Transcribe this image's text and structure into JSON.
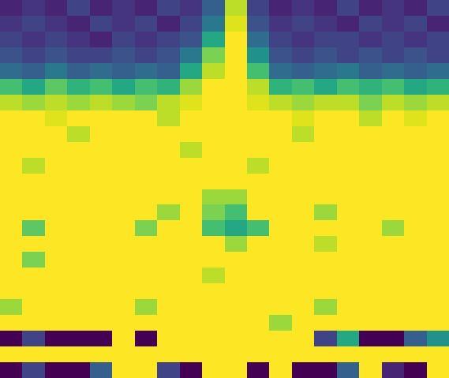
{
  "chart_data": {
    "type": "heatmap",
    "color": "Viridis",
    "tick_labels": false,
    "x": [
      0,
      1,
      2,
      3,
      4,
      5,
      6,
      7,
      8,
      9,
      10,
      11,
      12,
      13,
      14,
      15,
      16,
      17,
      18,
      19
    ],
    "y": [
      0,
      1,
      2,
      3,
      4,
      5,
      6,
      7,
      8,
      9,
      10,
      11,
      12,
      13,
      14,
      15,
      16,
      17,
      18,
      19,
      20,
      21,
      22,
      23
    ],
    "xlim": [
      -0.5,
      19.5
    ],
    "ylim": [
      23.5,
      -0.5
    ],
    "zlim": [
      0,
      1
    ],
    "z": [
      [
        0.1,
        0.15,
        0.1,
        0.2,
        0.1,
        0.15,
        0.1,
        0.2,
        0.15,
        0.3,
        0.9,
        0.2,
        0.1,
        0.15,
        0.1,
        0.2,
        0.1,
        0.15,
        0.1,
        0.2
      ],
      [
        0.15,
        0.2,
        0.15,
        0.1,
        0.2,
        0.15,
        0.2,
        0.1,
        0.2,
        0.4,
        0.95,
        0.25,
        0.15,
        0.2,
        0.15,
        0.1,
        0.2,
        0.15,
        0.2,
        0.1
      ],
      [
        0.2,
        0.15,
        0.2,
        0.15,
        0.1,
        0.2,
        0.15,
        0.2,
        0.25,
        0.6,
        1,
        0.35,
        0.2,
        0.15,
        0.2,
        0.2,
        0.15,
        0.2,
        0.15,
        0.2
      ],
      [
        0.25,
        0.2,
        0.25,
        0.2,
        0.2,
        0.25,
        0.2,
        0.25,
        0.4,
        0.8,
        1,
        0.5,
        0.25,
        0.2,
        0.25,
        0.2,
        0.25,
        0.2,
        0.25,
        0.2
      ],
      [
        0.35,
        0.3,
        0.4,
        0.3,
        0.35,
        0.3,
        0.35,
        0.3,
        0.6,
        0.9,
        1,
        0.7,
        0.35,
        0.3,
        0.35,
        0.4,
        0.3,
        0.35,
        0.3,
        0.35
      ],
      [
        0.7,
        0.6,
        0.75,
        0.65,
        0.7,
        0.6,
        0.7,
        0.65,
        0.85,
        1,
        1,
        0.9,
        0.65,
        0.7,
        0.6,
        0.7,
        0.65,
        0.7,
        0.6,
        0.65
      ],
      [
        0.9,
        0.85,
        0.9,
        0.85,
        0.9,
        0.85,
        0.8,
        0.9,
        0.95,
        1,
        1,
        0.95,
        0.9,
        0.85,
        0.9,
        0.9,
        0.8,
        0.9,
        0.85,
        0.9
      ],
      [
        1,
        1,
        0.95,
        1,
        1,
        1,
        1,
        0.9,
        1,
        1,
        1,
        1,
        1,
        0.95,
        1,
        1,
        0.9,
        1,
        0.95,
        1
      ],
      [
        1,
        1,
        1,
        0.9,
        1,
        1,
        1,
        1,
        1,
        1,
        1,
        1,
        1,
        0.9,
        1,
        1,
        1,
        1,
        1,
        1
      ],
      [
        1,
        1,
        1,
        1,
        1,
        1,
        1,
        1,
        0.9,
        1,
        1,
        1,
        1,
        1,
        1,
        1,
        1,
        1,
        1,
        1
      ],
      [
        1,
        0.9,
        1,
        1,
        1,
        1,
        1,
        1,
        1,
        1,
        1,
        0.9,
        1,
        1,
        1,
        1,
        1,
        1,
        1,
        1
      ],
      [
        1,
        1,
        1,
        1,
        1,
        1,
        1,
        1,
        1,
        1,
        1,
        1,
        1,
        1,
        1,
        1,
        1,
        1,
        1,
        1
      ],
      [
        1,
        1,
        1,
        1,
        1,
        1,
        1,
        1,
        1,
        0.85,
        0.85,
        1,
        1,
        1,
        1,
        1,
        1,
        1,
        1,
        1
      ],
      [
        1,
        1,
        1,
        1,
        1,
        1,
        1,
        0.85,
        1,
        0.8,
        0.7,
        1,
        1,
        1,
        0.85,
        1,
        1,
        1,
        1,
        1
      ],
      [
        1,
        0.75,
        1,
        1,
        1,
        1,
        0.8,
        1,
        1,
        0.7,
        0.6,
        0.7,
        1,
        1,
        1,
        1,
        1,
        0.85,
        1,
        1
      ],
      [
        1,
        1,
        1,
        1,
        1,
        1,
        1,
        1,
        1,
        1,
        0.85,
        1,
        1,
        1,
        0.9,
        1,
        1,
        1,
        1,
        1
      ],
      [
        1,
        0.8,
        1,
        1,
        1,
        1,
        1,
        1,
        1,
        1,
        1,
        1,
        1,
        1,
        1,
        1,
        1,
        1,
        1,
        1
      ],
      [
        1,
        1,
        1,
        1,
        1,
        1,
        1,
        1,
        1,
        0.9,
        1,
        1,
        1,
        1,
        1,
        1,
        1,
        1,
        1,
        1
      ],
      [
        1,
        1,
        1,
        1,
        1,
        1,
        1,
        1,
        1,
        1,
        1,
        1,
        1,
        1,
        1,
        1,
        1,
        1,
        1,
        1
      ],
      [
        0.85,
        1,
        1,
        1,
        1,
        1,
        0.85,
        1,
        1,
        1,
        1,
        1,
        1,
        1,
        0.85,
        1,
        1,
        1,
        1,
        1
      ],
      [
        1,
        1,
        1,
        1,
        1,
        1,
        1,
        1,
        1,
        1,
        1,
        1,
        0.85,
        1,
        1,
        1,
        1,
        1,
        1,
        1
      ],
      [
        0,
        0.2,
        0,
        0,
        0,
        1,
        0,
        1,
        1,
        1,
        1,
        1,
        1,
        1,
        0.2,
        0.6,
        0,
        0,
        0.3,
        0.5
      ],
      [
        1,
        1,
        1,
        1,
        1,
        1,
        1,
        1,
        1,
        1,
        1,
        1,
        1,
        1,
        1,
        1,
        1,
        1,
        1,
        1
      ],
      [
        0,
        0.2,
        0,
        0,
        0.3,
        1,
        1,
        0.2,
        0,
        1,
        1,
        0,
        1,
        0,
        0,
        0.3,
        1,
        0.1,
        0,
        1
      ]
    ]
  }
}
